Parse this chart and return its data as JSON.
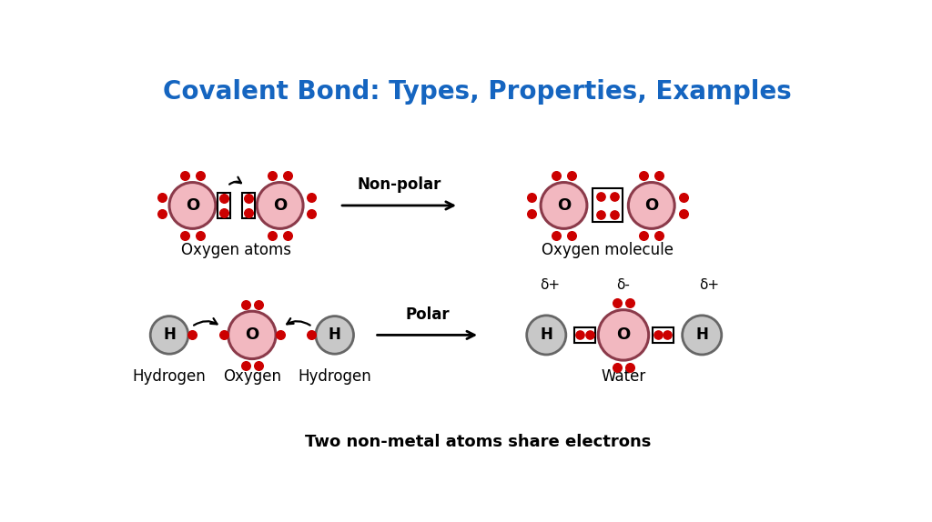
{
  "title": "Covalent Bond: Types, Properties, Examples",
  "title_color": "#1565C0",
  "title_fontsize": 20,
  "bottom_label": "Two non-metal atoms share electrons",
  "bg_color": "#ffffff",
  "O_fill": "#F2B8C0",
  "O_border": "#8B3A4A",
  "H_fill": "#C8C8C8",
  "H_border": "#666666",
  "red": "#CC0000",
  "nonpolar_label": "Non-polar",
  "polar_label": "Polar",
  "section1_labels": [
    "Oxygen atoms",
    "Oxygen molecule"
  ],
  "section2_labels": [
    "Hydrogen",
    "Oxygen",
    "Hydrogen",
    "Water"
  ]
}
